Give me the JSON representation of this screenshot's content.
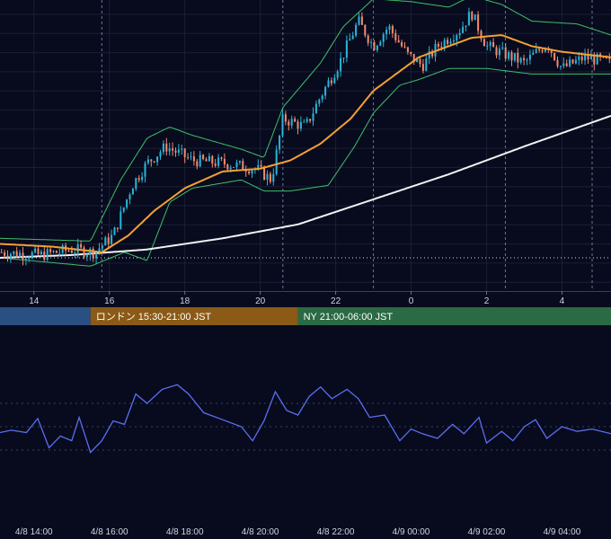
{
  "colors": {
    "background": "#080b1e",
    "grid": "#2a2f48",
    "candle_up": "#2bb3d6",
    "candle_down": "#f08a6e",
    "bollinger": "#3fbf6b",
    "ma_short": "#f5a031",
    "ma_long": "#f2f2f2",
    "oscillator": "#5a6ef0",
    "session_tokyo": "#2a4f82",
    "session_london": "#8a5a16",
    "session_ny": "#2a6a44"
  },
  "sessions": [
    {
      "name": "tokyo",
      "label": ""
    },
    {
      "name": "london",
      "label": "ロンドン 15:30-21:00 JST"
    },
    {
      "name": "ny",
      "label": "NY 21:00-06:00 JST"
    }
  ],
  "chart_data": [
    {
      "type": "candlestick",
      "title": "",
      "x_ticks": [
        "14",
        "16",
        "18",
        "20",
        "22",
        "0",
        "2",
        "4"
      ],
      "x_tick_hours": [
        14,
        16,
        18,
        20,
        22,
        24,
        26,
        28
      ],
      "x_range_hours": [
        13.1,
        29.3
      ],
      "y_range": [
        0,
        100
      ],
      "session_breaks_hours": [
        15.8,
        20.6,
        23.0,
        26.5,
        28.8
      ],
      "reference_line": 10,
      "price_anchors": [
        [
          13.1,
          12
        ],
        [
          14.2,
          11
        ],
        [
          15.0,
          13
        ],
        [
          15.6,
          12
        ],
        [
          16.1,
          18
        ],
        [
          16.6,
          36
        ],
        [
          17.0,
          44
        ],
        [
          17.5,
          50
        ],
        [
          18.2,
          45
        ],
        [
          19.0,
          44
        ],
        [
          19.9,
          42
        ],
        [
          20.3,
          38
        ],
        [
          20.6,
          60
        ],
        [
          21.2,
          57
        ],
        [
          21.6,
          68
        ],
        [
          22.1,
          80
        ],
        [
          22.6,
          95
        ],
        [
          23.0,
          86
        ],
        [
          23.4,
          93
        ],
        [
          23.9,
          83
        ],
        [
          24.3,
          79
        ],
        [
          24.7,
          86
        ],
        [
          25.3,
          92
        ],
        [
          25.6,
          98
        ],
        [
          26.0,
          86
        ],
        [
          26.5,
          83
        ],
        [
          27.0,
          80
        ],
        [
          27.6,
          87
        ],
        [
          28.0,
          78
        ],
        [
          28.6,
          82
        ],
        [
          29.3,
          80
        ]
      ],
      "ma_short": [
        [
          13.1,
          15
        ],
        [
          14.5,
          14
        ],
        [
          15.8,
          12
        ],
        [
          16.5,
          18
        ],
        [
          17.2,
          27
        ],
        [
          18.0,
          35
        ],
        [
          19.0,
          41
        ],
        [
          20.0,
          42
        ],
        [
          20.8,
          45
        ],
        [
          21.6,
          51
        ],
        [
          22.4,
          60
        ],
        [
          23.0,
          70
        ],
        [
          23.6,
          76
        ],
        [
          24.2,
          82
        ],
        [
          25.0,
          86
        ],
        [
          25.6,
          89
        ],
        [
          26.4,
          90
        ],
        [
          27.2,
          86
        ],
        [
          28.0,
          84
        ],
        [
          29.3,
          82
        ]
      ],
      "ma_long": [
        [
          13.1,
          10
        ],
        [
          15.0,
          11
        ],
        [
          17.0,
          13
        ],
        [
          19.0,
          17
        ],
        [
          21.0,
          22
        ],
        [
          23.0,
          31
        ],
        [
          25.0,
          40
        ],
        [
          27.0,
          50
        ],
        [
          29.3,
          61
        ]
      ],
      "bollinger_upper": [
        [
          13.1,
          17
        ],
        [
          15.5,
          16
        ],
        [
          16.3,
          38
        ],
        [
          17.0,
          53
        ],
        [
          17.6,
          57
        ],
        [
          18.2,
          54
        ],
        [
          19.5,
          49
        ],
        [
          20.1,
          46
        ],
        [
          20.6,
          64
        ],
        [
          21.6,
          80
        ],
        [
          22.2,
          93
        ],
        [
          23.0,
          103
        ],
        [
          24.0,
          102
        ],
        [
          25.0,
          100
        ],
        [
          25.6,
          104
        ],
        [
          26.4,
          101
        ],
        [
          27.2,
          95
        ],
        [
          28.4,
          94
        ],
        [
          29.3,
          90
        ]
      ],
      "bollinger_lower": [
        [
          13.1,
          10
        ],
        [
          15.5,
          7
        ],
        [
          16.4,
          12
        ],
        [
          17.0,
          9
        ],
        [
          17.6,
          30
        ],
        [
          18.2,
          35
        ],
        [
          19.5,
          38
        ],
        [
          20.1,
          34
        ],
        [
          20.8,
          34
        ],
        [
          21.8,
          36
        ],
        [
          22.5,
          50
        ],
        [
          23.0,
          62
        ],
        [
          23.7,
          72
        ],
        [
          24.2,
          74
        ],
        [
          25.0,
          78
        ],
        [
          26.0,
          78
        ],
        [
          27.2,
          76
        ],
        [
          29.3,
          76
        ]
      ]
    },
    {
      "type": "line",
      "title": "",
      "y_range": [
        0,
        100
      ],
      "x_ticks": [
        "4/8 14:00",
        "4/8 16:00",
        "4/8 18:00",
        "4/8 20:00",
        "4/8 22:00",
        "4/9 00:00",
        "4/9 02:00",
        "4/9 04:00"
      ],
      "x_tick_hours": [
        14,
        16,
        18,
        20,
        22,
        24,
        26,
        28
      ],
      "gridlines": [
        30,
        50,
        70
      ],
      "anchors": [
        [
          13.1,
          45
        ],
        [
          13.4,
          47
        ],
        [
          13.8,
          45
        ],
        [
          14.1,
          57
        ],
        [
          14.4,
          32
        ],
        [
          14.7,
          42
        ],
        [
          15.0,
          38
        ],
        [
          15.2,
          58
        ],
        [
          15.5,
          28
        ],
        [
          15.8,
          38
        ],
        [
          16.1,
          55
        ],
        [
          16.4,
          52
        ],
        [
          16.7,
          78
        ],
        [
          17.0,
          70
        ],
        [
          17.4,
          82
        ],
        [
          17.8,
          86
        ],
        [
          18.1,
          78
        ],
        [
          18.5,
          62
        ],
        [
          19.0,
          56
        ],
        [
          19.5,
          50
        ],
        [
          19.8,
          38
        ],
        [
          20.1,
          55
        ],
        [
          20.4,
          80
        ],
        [
          20.7,
          64
        ],
        [
          21.0,
          60
        ],
        [
          21.3,
          76
        ],
        [
          21.6,
          84
        ],
        [
          21.9,
          74
        ],
        [
          22.3,
          82
        ],
        [
          22.6,
          74
        ],
        [
          22.9,
          58
        ],
        [
          23.3,
          60
        ],
        [
          23.7,
          38
        ],
        [
          24.0,
          48
        ],
        [
          24.3,
          44
        ],
        [
          24.7,
          40
        ],
        [
          25.1,
          52
        ],
        [
          25.4,
          44
        ],
        [
          25.8,
          58
        ],
        [
          26.0,
          36
        ],
        [
          26.4,
          46
        ],
        [
          26.7,
          38
        ],
        [
          27.0,
          50
        ],
        [
          27.3,
          56
        ],
        [
          27.6,
          40
        ],
        [
          28.0,
          50
        ],
        [
          28.4,
          46
        ],
        [
          28.8,
          48
        ],
        [
          29.3,
          44
        ]
      ]
    }
  ]
}
